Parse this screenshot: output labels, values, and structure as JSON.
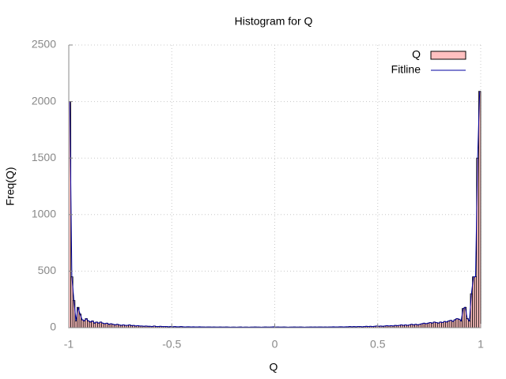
{
  "chart_data": {
    "type": "histogram",
    "title": "Histogram for Q",
    "x_label": "Q",
    "y_label": "Freq(Q)",
    "bins": [
      -1,
      -0.99,
      -0.98,
      -0.97,
      -0.96,
      -0.95,
      -0.94,
      -0.93,
      -0.92,
      -0.91,
      -0.9,
      -0.89,
      -0.88,
      -0.87,
      -0.86,
      -0.85,
      -0.84,
      -0.83,
      -0.82,
      -0.81,
      -0.8,
      -0.79,
      -0.78,
      -0.77,
      -0.76,
      -0.75,
      -0.74,
      -0.73,
      -0.72,
      -0.71,
      -0.7,
      -0.69,
      -0.68,
      -0.67,
      -0.66,
      -0.65,
      -0.64,
      -0.63,
      -0.62,
      -0.61,
      -0.6,
      -0.59,
      -0.58,
      -0.57,
      -0.56,
      -0.55,
      -0.54,
      -0.53,
      -0.52,
      -0.51,
      -0.5,
      -0.49,
      -0.48,
      -0.47,
      -0.46,
      -0.45,
      -0.44,
      -0.43,
      -0.42,
      -0.41,
      -0.4,
      -0.39,
      -0.38,
      -0.37,
      -0.36,
      -0.35,
      -0.34,
      -0.33,
      -0.32,
      -0.31,
      -0.3,
      -0.29,
      -0.28,
      -0.27,
      -0.26,
      -0.25,
      -0.24,
      -0.23,
      -0.22,
      -0.21,
      -0.2,
      -0.19,
      -0.18,
      -0.17,
      -0.16,
      -0.15,
      -0.14,
      -0.13,
      -0.12,
      -0.11,
      -0.1,
      -0.09,
      -0.08,
      -0.07,
      -0.06,
      -0.05,
      -0.04,
      -0.03,
      -0.02,
      -0.01,
      0,
      0.01,
      0.02,
      0.03,
      0.04,
      0.05,
      0.06,
      0.07,
      0.08,
      0.09,
      0.1,
      0.11,
      0.12,
      0.13,
      0.14,
      0.15,
      0.16,
      0.17,
      0.18,
      0.19,
      0.2,
      0.21,
      0.22,
      0.23,
      0.24,
      0.25,
      0.26,
      0.27,
      0.28,
      0.29,
      0.3,
      0.31,
      0.32,
      0.33,
      0.34,
      0.35,
      0.36,
      0.37,
      0.38,
      0.39,
      0.4,
      0.41,
      0.42,
      0.43,
      0.44,
      0.45,
      0.46,
      0.47,
      0.48,
      0.49,
      0.5,
      0.51,
      0.52,
      0.53,
      0.54,
      0.55,
      0.56,
      0.57,
      0.58,
      0.59,
      0.6,
      0.61,
      0.62,
      0.63,
      0.64,
      0.65,
      0.66,
      0.67,
      0.68,
      0.69,
      0.7,
      0.71,
      0.72,
      0.73,
      0.74,
      0.75,
      0.76,
      0.77,
      0.78,
      0.79,
      0.8,
      0.81,
      0.82,
      0.83,
      0.84,
      0.85,
      0.86,
      0.87,
      0.88,
      0.89,
      0.9,
      0.91,
      0.92,
      0.93,
      0.94,
      0.95,
      0.96,
      0.97,
      0.98,
      0.99,
      1
    ],
    "series": [
      {
        "name": "Q",
        "color": "#ffc0c0",
        "values": [
          2000,
          450,
          240,
          60,
          180,
          120,
          70,
          60,
          80,
          60,
          50,
          60,
          40,
          50,
          40,
          50,
          40,
          35,
          40,
          30,
          35,
          30,
          25,
          30,
          25,
          20,
          25,
          20,
          20,
          25,
          18,
          20,
          15,
          18,
          15,
          15,
          12,
          15,
          12,
          12,
          10,
          15,
          10,
          10,
          12,
          10,
          10,
          10,
          8,
          10,
          8,
          10,
          8,
          8,
          10,
          8,
          6,
          8,
          8,
          6,
          8,
          6,
          6,
          8,
          6,
          6,
          5,
          6,
          6,
          5,
          6,
          5,
          5,
          6,
          5,
          5,
          6,
          5,
          4,
          5,
          5,
          4,
          5,
          6,
          4,
          5,
          5,
          4,
          5,
          5,
          6,
          5,
          5,
          4,
          5,
          6,
          5,
          5,
          6,
          8,
          5,
          6,
          5,
          5,
          6,
          5,
          4,
          5,
          5,
          6,
          5,
          5,
          6,
          5,
          4,
          5,
          5,
          6,
          5,
          6,
          5,
          6,
          6,
          5,
          6,
          5,
          6,
          6,
          8,
          6,
          6,
          8,
          8,
          6,
          8,
          8,
          10,
          8,
          10,
          8,
          10,
          10,
          8,
          10,
          12,
          10,
          12,
          10,
          12,
          15,
          12,
          15,
          12,
          15,
          18,
          15,
          18,
          15,
          20,
          18,
          20,
          25,
          20,
          25,
          20,
          25,
          30,
          25,
          30,
          25,
          30,
          35,
          40,
          35,
          40,
          45,
          40,
          50,
          45,
          40,
          50,
          45,
          55,
          50,
          60,
          65,
          55,
          70,
          80,
          75,
          60,
          170,
          180,
          80,
          60,
          300,
          450,
          450,
          1500,
          2090
        ]
      },
      {
        "name": "Fitline",
        "color": "#0000a0",
        "values": [
          2000,
          450,
          240,
          60,
          180,
          120,
          70,
          60,
          80,
          60,
          50,
          60,
          40,
          50,
          40,
          50,
          40,
          35,
          40,
          30,
          35,
          30,
          25,
          30,
          25,
          20,
          25,
          20,
          20,
          25,
          18,
          20,
          15,
          18,
          15,
          15,
          12,
          15,
          12,
          12,
          10,
          15,
          10,
          10,
          12,
          10,
          10,
          10,
          8,
          10,
          8,
          10,
          8,
          8,
          10,
          8,
          6,
          8,
          8,
          6,
          8,
          6,
          6,
          8,
          6,
          6,
          5,
          6,
          6,
          5,
          6,
          5,
          5,
          6,
          5,
          5,
          6,
          5,
          4,
          5,
          5,
          4,
          5,
          6,
          4,
          5,
          5,
          4,
          5,
          5,
          6,
          5,
          5,
          4,
          5,
          6,
          5,
          5,
          6,
          8,
          5,
          6,
          5,
          5,
          6,
          5,
          4,
          5,
          5,
          6,
          5,
          5,
          6,
          5,
          4,
          5,
          5,
          6,
          5,
          6,
          5,
          6,
          6,
          5,
          6,
          5,
          6,
          6,
          8,
          6,
          6,
          8,
          8,
          6,
          8,
          8,
          10,
          8,
          10,
          8,
          10,
          10,
          8,
          10,
          12,
          10,
          12,
          10,
          12,
          15,
          12,
          15,
          12,
          15,
          18,
          15,
          18,
          15,
          20,
          18,
          20,
          25,
          20,
          25,
          20,
          25,
          30,
          25,
          30,
          25,
          30,
          35,
          40,
          35,
          40,
          45,
          40,
          50,
          45,
          40,
          50,
          45,
          55,
          50,
          60,
          65,
          55,
          70,
          80,
          75,
          60,
          170,
          180,
          80,
          60,
          300,
          450,
          450,
          1500,
          2090
        ]
      }
    ],
    "xlim": [
      -1,
      1
    ],
    "xticks": [
      -1,
      -0.5,
      0,
      0.5,
      1
    ],
    "ylim": [
      0,
      2500
    ],
    "yticks": [
      0,
      500,
      1000,
      1500,
      2000,
      2500
    ],
    "grid": true,
    "legend": "top-right"
  }
}
